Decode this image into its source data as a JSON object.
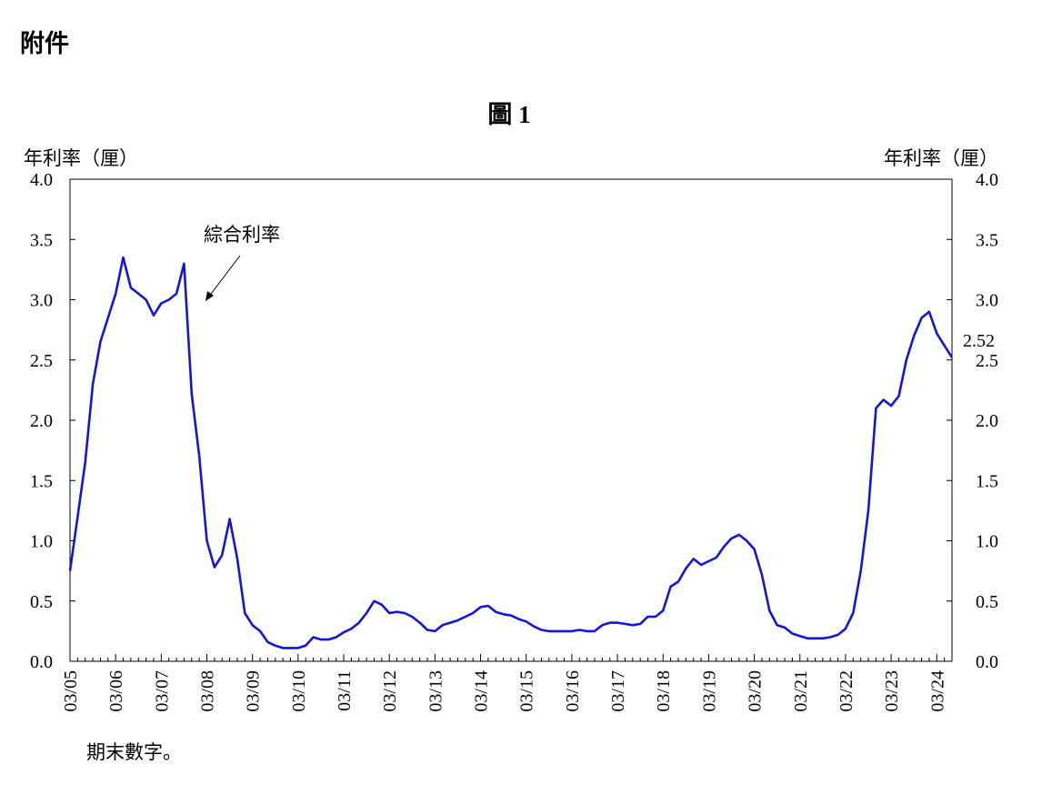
{
  "header": "附件",
  "chart_data": {
    "type": "line",
    "title": "圖 1",
    "y_label": "年利率（厘）",
    "y2_label": "年利率（厘）",
    "annotation": "綜合利率",
    "end_value_label": "2.52",
    "footnote": "期末數字。",
    "categories": [
      "03/05",
      null,
      null,
      null,
      null,
      null,
      "03/06",
      null,
      null,
      null,
      null,
      null,
      "03/07",
      null,
      null,
      null,
      null,
      null,
      "03/08",
      null,
      null,
      null,
      null,
      null,
      "03/09",
      null,
      null,
      null,
      null,
      null,
      "03/10",
      null,
      null,
      null,
      null,
      null,
      "03/11",
      null,
      null,
      null,
      null,
      null,
      "03/12",
      null,
      null,
      null,
      null,
      null,
      "03/13",
      null,
      null,
      null,
      null,
      null,
      "03/14",
      null,
      null,
      null,
      null,
      null,
      "03/15",
      null,
      null,
      null,
      null,
      null,
      "03/16",
      null,
      null,
      null,
      null,
      null,
      "03/17",
      null,
      null,
      null,
      null,
      null,
      "03/18",
      null,
      null,
      null,
      null,
      null,
      "03/19",
      null,
      null,
      null,
      null,
      null,
      "03/20",
      null,
      null,
      null,
      null,
      null,
      "03/21",
      null,
      null,
      null,
      null,
      null,
      "03/22",
      null,
      null,
      null,
      null,
      null,
      "03/23",
      null,
      null,
      null,
      null,
      null,
      "03/24",
      null,
      null
    ],
    "series": [
      {
        "name": "綜合利率",
        "color": "#1414dc",
        "values": [
          0.75,
          1.2,
          1.65,
          2.3,
          2.65,
          2.85,
          3.05,
          3.35,
          3.1,
          3.05,
          3.0,
          2.87,
          2.97,
          3.0,
          3.05,
          3.3,
          2.22,
          1.7,
          1.0,
          0.78,
          0.88,
          1.18,
          0.85,
          0.4,
          0.3,
          0.25,
          0.16,
          0.13,
          0.11,
          0.11,
          0.11,
          0.13,
          0.2,
          0.18,
          0.18,
          0.2,
          0.24,
          0.27,
          0.32,
          0.4,
          0.5,
          0.47,
          0.4,
          0.41,
          0.4,
          0.37,
          0.32,
          0.26,
          0.25,
          0.3,
          0.32,
          0.34,
          0.37,
          0.4,
          0.45,
          0.46,
          0.41,
          0.39,
          0.38,
          0.35,
          0.33,
          0.29,
          0.26,
          0.25,
          0.25,
          0.25,
          0.25,
          0.26,
          0.25,
          0.25,
          0.3,
          0.32,
          0.32,
          0.31,
          0.3,
          0.31,
          0.37,
          0.37,
          0.42,
          0.62,
          0.66,
          0.77,
          0.85,
          0.8,
          0.83,
          0.86,
          0.95,
          1.02,
          1.05,
          1.0,
          0.93,
          0.72,
          0.42,
          0.3,
          0.28,
          0.23,
          0.21,
          0.19,
          0.19,
          0.19,
          0.2,
          0.22,
          0.27,
          0.4,
          0.75,
          1.25,
          2.1,
          2.17,
          2.12,
          2.2,
          2.5,
          2.7,
          2.85,
          2.9,
          2.72,
          2.62,
          2.52
        ]
      }
    ],
    "ylim": [
      0,
      4
    ],
    "yticks": [
      {
        "value": 0,
        "label": "0.0"
      },
      0.5,
      {
        "value": 1,
        "label": "1.0"
      },
      1.5,
      {
        "value": 2,
        "label": "2.0"
      },
      2.5,
      {
        "value": 3,
        "label": "3.0"
      },
      3.5,
      {
        "value": 4,
        "label": "4.0"
      }
    ],
    "y2lim": [
      0,
      4
    ],
    "y2ticks": [
      {
        "value": 0,
        "label": "0.0"
      },
      0.5,
      {
        "value": 1,
        "label": "1.0"
      },
      1.5,
      {
        "value": 2,
        "label": "2.0"
      },
      2.5,
      {
        "value": 3,
        "label": "3.0"
      },
      3.5,
      {
        "value": 4,
        "label": "4.0"
      }
    ],
    "grid": false
  }
}
